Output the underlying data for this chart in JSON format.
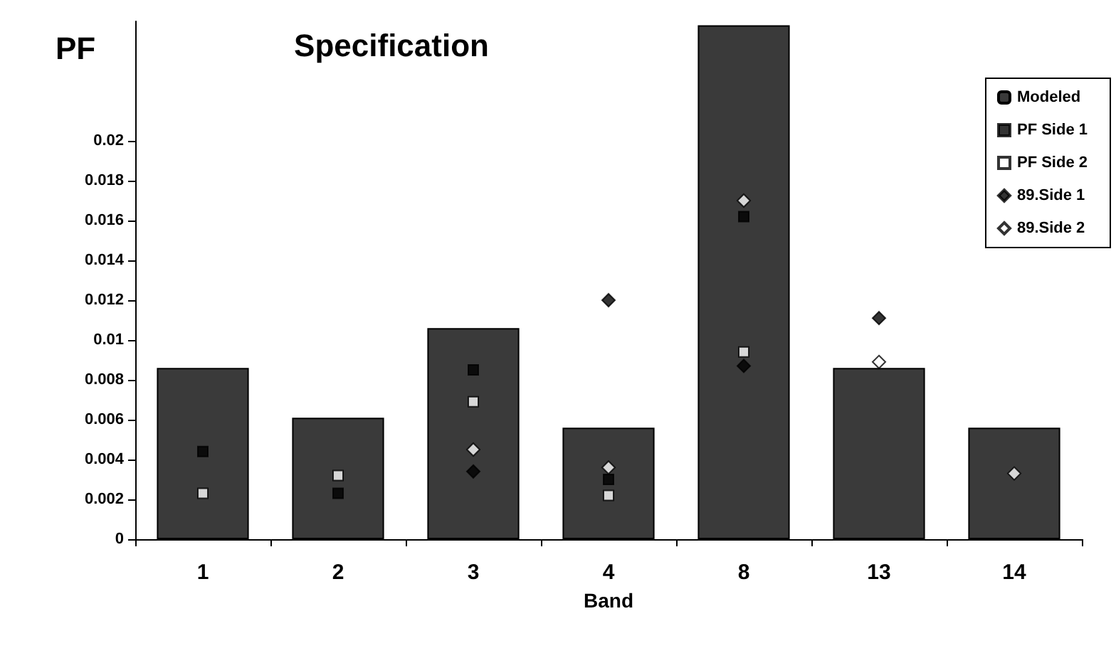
{
  "chart_data": {
    "type": "bar",
    "title": "Specification",
    "ylabel": "PF",
    "xlabel": "Band",
    "categories": [
      "1",
      "2",
      "3",
      "4",
      "8",
      "13",
      "14"
    ],
    "series": [
      {
        "name": "Modeled",
        "color": "#3a3a3a",
        "values": [
          0.0086,
          0.0061,
          0.0106,
          0.0056,
          0.0258,
          0.0086,
          0.0056
        ]
      },
      {
        "name": "PF Side 1",
        "type": "scatter",
        "marker": "square",
        "color": "#000000",
        "x": [
          "1",
          "2",
          "3",
          "4",
          "8",
          "13",
          "14"
        ],
        "values": [
          0.0044,
          0.0023,
          0.0085,
          0.003,
          0.0162,
          null,
          null
        ]
      },
      {
        "name": "PF Side 2",
        "type": "scatter",
        "marker": "square",
        "color": "#ffffff",
        "x": [
          "1",
          "2",
          "3",
          "4",
          "8",
          "13",
          "14"
        ],
        "values": [
          0.0023,
          0.0032,
          0.0069,
          0.0022,
          0.0094,
          null,
          null
        ]
      },
      {
        "name": "89.Side 1",
        "type": "scatter",
        "marker": "diamond",
        "color": "#000000",
        "x": [
          "1",
          "2",
          "3",
          "4",
          "8",
          "13",
          "14"
        ],
        "values": [
          null,
          null,
          0.0034,
          0.012,
          0.0087,
          0.0111,
          null
        ]
      },
      {
        "name": "89.Side 2",
        "type": "scatter",
        "marker": "diamond",
        "color": "#ffffff",
        "x": [
          "1",
          "2",
          "3",
          "4",
          "8",
          "13",
          "14"
        ],
        "values": [
          null,
          null,
          0.0045,
          0.0036,
          0.017,
          0.0089,
          0.0033
        ]
      }
    ],
    "ylim": [
      0,
      0.026
    ],
    "yticks": [
      0,
      0.002,
      0.004,
      0.006,
      0.008,
      0.01,
      0.012,
      0.014,
      0.016,
      0.018,
      0.02
    ],
    "grid": false,
    "legend": "top right"
  }
}
